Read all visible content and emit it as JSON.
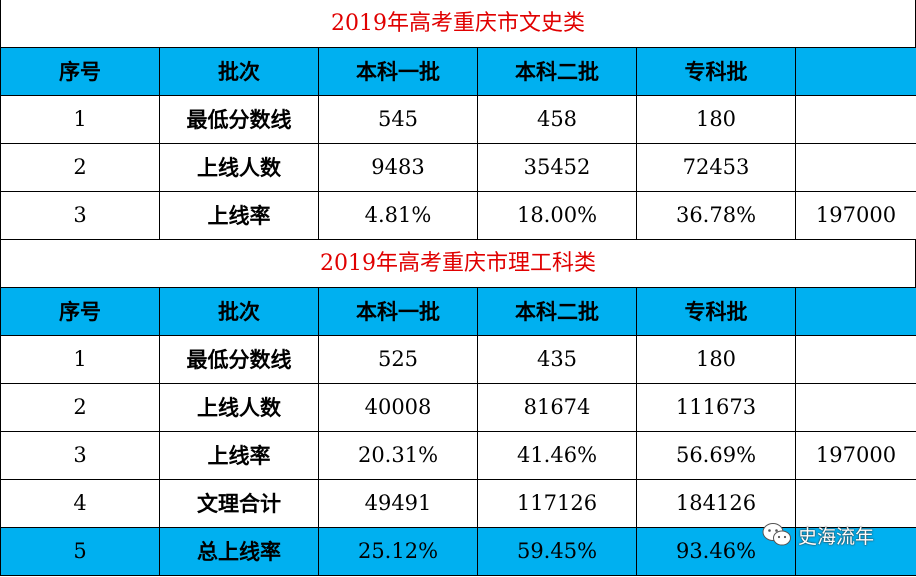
{
  "table1": {
    "title": "2019年高考重庆市文史类",
    "headers": [
      "序号",
      "批次",
      "本科一批",
      "本科二批",
      "专科批",
      ""
    ],
    "rows": [
      [
        "1",
        "最低分数线",
        "545",
        "458",
        "180",
        ""
      ],
      [
        "2",
        "上线人数",
        "9483",
        "35452",
        "72453",
        ""
      ],
      [
        "3",
        "上线率",
        "4.81%",
        "18.00%",
        "36.78%",
        "197000"
      ]
    ]
  },
  "table2": {
    "title": "2019年高考重庆市理工科类",
    "headers": [
      "序号",
      "批次",
      "本科一批",
      "本科二批",
      "专科批",
      ""
    ],
    "rows": [
      [
        "1",
        "最低分数线",
        "525",
        "435",
        "180",
        ""
      ],
      [
        "2",
        "上线人数",
        "40008",
        "81674",
        "111673",
        ""
      ],
      [
        "3",
        "上线率",
        "20.31%",
        "41.46%",
        "56.69%",
        "197000"
      ],
      [
        "4",
        "文理合计",
        "49491",
        "117126",
        "184126",
        ""
      ],
      [
        "5",
        "总上线率",
        "25.12%",
        "59.45%",
        "93.46%",
        ""
      ]
    ]
  },
  "watermark": {
    "text": "史海流年",
    "icon": "wechat-icon"
  },
  "colors": {
    "header_bg": "#00b0f0",
    "title_text": "#e00000"
  }
}
